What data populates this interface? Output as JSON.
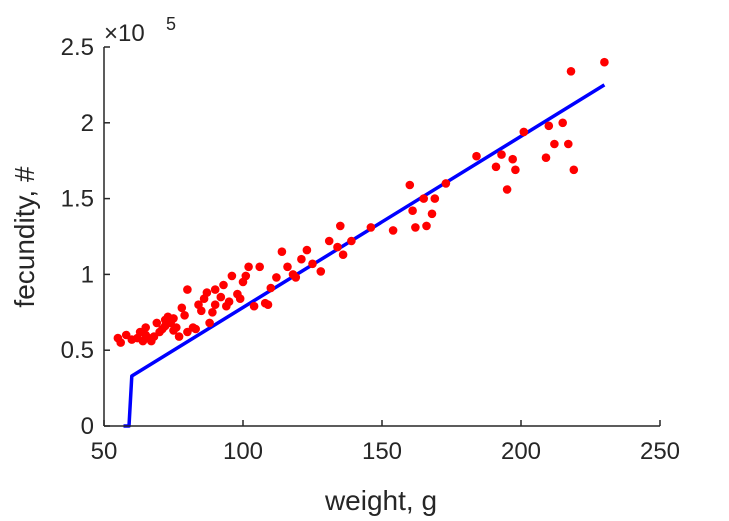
{
  "chart_data": {
    "type": "scatter",
    "xlabel": "weight, g",
    "ylabel": "fecundity, #",
    "y_multiplier": "×10",
    "y_multiplier_exp": "5",
    "xlim": [
      50,
      250
    ],
    "ylim": [
      0,
      250000
    ],
    "xticks": [
      50,
      100,
      150,
      200,
      250
    ],
    "xtick_labels": [
      "50",
      "100",
      "150",
      "200",
      "250"
    ],
    "yticks": [
      0,
      50000,
      100000,
      150000,
      200000,
      250000
    ],
    "ytick_labels": [
      "0",
      "0.5",
      "1",
      "1.5",
      "2",
      "2.5"
    ],
    "grid": false,
    "colors": {
      "points": "#ff0000",
      "fit_line": "#0000ff",
      "axis": "#262626"
    },
    "series": [
      {
        "type": "scatter",
        "points": [
          [
            55,
            58000
          ],
          [
            56,
            55000
          ],
          [
            58,
            60000
          ],
          [
            60,
            57000
          ],
          [
            62,
            58000
          ],
          [
            63,
            62000
          ],
          [
            64,
            56000
          ],
          [
            65,
            60000
          ],
          [
            65,
            65000
          ],
          [
            66,
            58000
          ],
          [
            67,
            56000
          ],
          [
            68,
            59000
          ],
          [
            69,
            68000
          ],
          [
            70,
            62000
          ],
          [
            71,
            64000
          ],
          [
            72,
            70000
          ],
          [
            72,
            66000
          ],
          [
            73,
            72000
          ],
          [
            74,
            68000
          ],
          [
            75,
            71000
          ],
          [
            75,
            63000
          ],
          [
            76,
            65000
          ],
          [
            77,
            59000
          ],
          [
            78,
            78000
          ],
          [
            79,
            73000
          ],
          [
            80,
            90000
          ],
          [
            80,
            62000
          ],
          [
            82,
            65000
          ],
          [
            83,
            64000
          ],
          [
            84,
            80000
          ],
          [
            85,
            76000
          ],
          [
            86,
            84000
          ],
          [
            87,
            88000
          ],
          [
            88,
            68000
          ],
          [
            89,
            75000
          ],
          [
            90,
            90000
          ],
          [
            90,
            80000
          ],
          [
            92,
            85000
          ],
          [
            93,
            93000
          ],
          [
            94,
            79000
          ],
          [
            95,
            82000
          ],
          [
            96,
            99000
          ],
          [
            98,
            87000
          ],
          [
            99,
            84000
          ],
          [
            100,
            95000
          ],
          [
            101,
            99000
          ],
          [
            102,
            105000
          ],
          [
            104,
            79000
          ],
          [
            106,
            105000
          ],
          [
            108,
            81000
          ],
          [
            109,
            80000
          ],
          [
            110,
            91000
          ],
          [
            112,
            98000
          ],
          [
            114,
            115000
          ],
          [
            116,
            105000
          ],
          [
            118,
            100000
          ],
          [
            119,
            98000
          ],
          [
            121,
            110000
          ],
          [
            123,
            116000
          ],
          [
            125,
            107000
          ],
          [
            128,
            102000
          ],
          [
            131,
            122000
          ],
          [
            134,
            118000
          ],
          [
            135,
            132000
          ],
          [
            136,
            113000
          ],
          [
            139,
            122000
          ],
          [
            146,
            131000
          ],
          [
            154,
            129000
          ],
          [
            160,
            159000
          ],
          [
            161,
            142000
          ],
          [
            162,
            131000
          ],
          [
            165,
            150000
          ],
          [
            166,
            132000
          ],
          [
            168,
            140000
          ],
          [
            169,
            150000
          ],
          [
            173,
            160000
          ],
          [
            184,
            178000
          ],
          [
            191,
            171000
          ],
          [
            193,
            179000
          ],
          [
            195,
            156000
          ],
          [
            197,
            176000
          ],
          [
            198,
            169000
          ],
          [
            201,
            194000
          ],
          [
            209,
            177000
          ],
          [
            210,
            198000
          ],
          [
            212,
            186000
          ],
          [
            215,
            200000
          ],
          [
            217,
            186000
          ],
          [
            218,
            234000
          ],
          [
            219,
            169000
          ],
          [
            230,
            240000
          ]
        ]
      },
      {
        "type": "line",
        "points": [
          [
            57,
            0
          ],
          [
            59,
            0
          ],
          [
            60,
            33000
          ],
          [
            230,
            225000
          ]
        ]
      }
    ]
  }
}
